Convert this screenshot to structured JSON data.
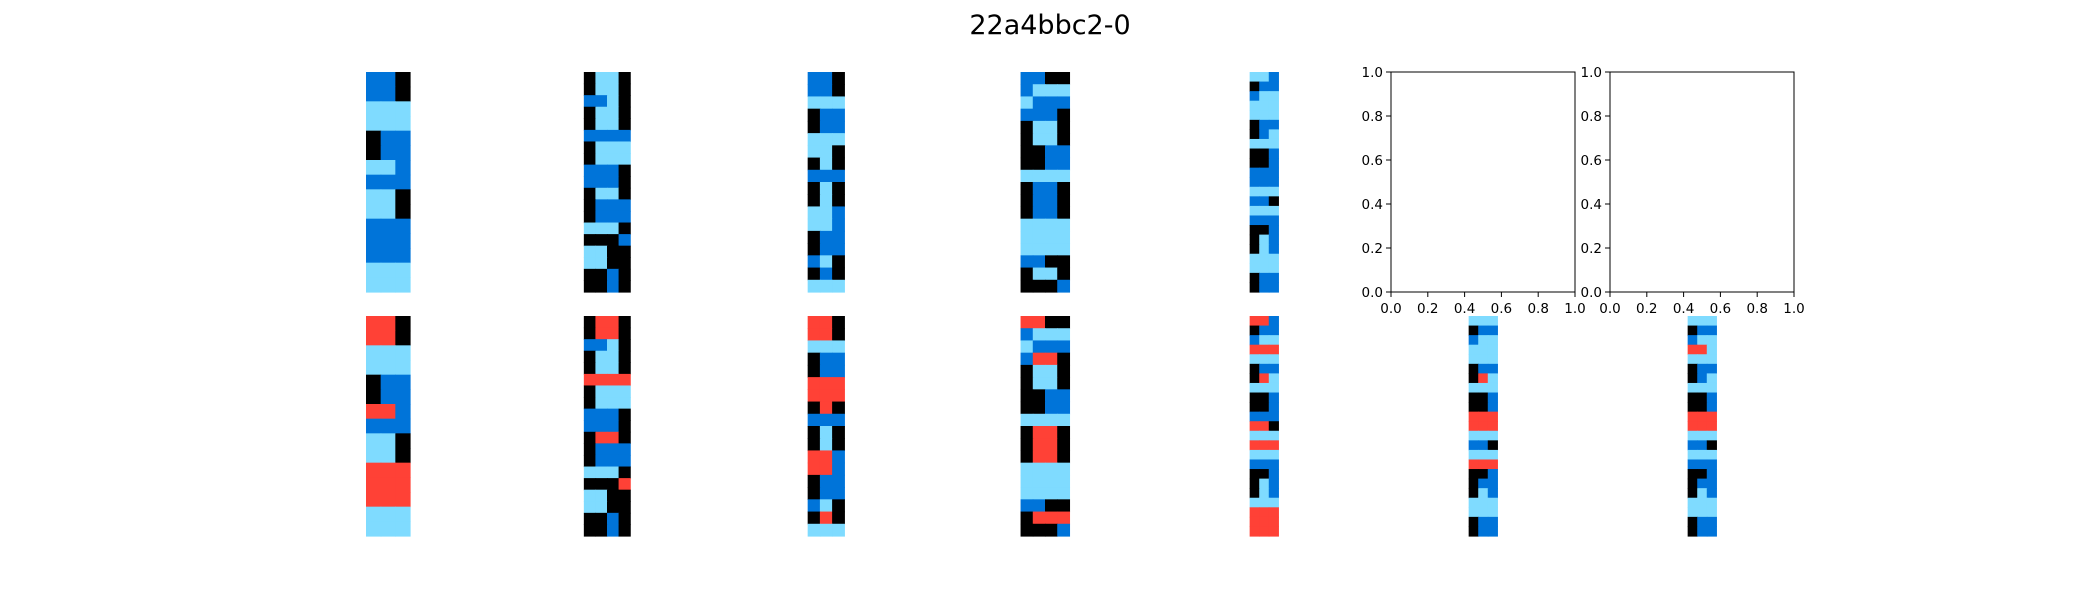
{
  "figure": {
    "title": "22a4bbc2-0"
  },
  "colors": {
    "0": "#000000",
    "1": "#0074D9",
    "2": "#FF4136",
    "8": "#7FDBFF"
  },
  "chart_data": {
    "type": "heatmap",
    "title": "22a4bbc2-0",
    "top_row": [
      {
        "grid": [
          [
            1,
            1,
            0
          ],
          [
            1,
            1,
            0
          ],
          [
            8,
            8,
            8
          ],
          [
            8,
            8,
            8
          ],
          [
            0,
            1,
            1
          ],
          [
            0,
            1,
            1
          ],
          [
            8,
            8,
            1
          ],
          [
            1,
            1,
            1
          ],
          [
            8,
            8,
            0
          ],
          [
            8,
            8,
            0
          ],
          [
            1,
            1,
            1
          ],
          [
            1,
            1,
            1
          ],
          [
            1,
            1,
            1
          ],
          [
            8,
            8,
            8
          ],
          [
            8,
            8,
            8
          ]
        ]
      },
      {
        "grid": [
          [
            0,
            8,
            8,
            0
          ],
          [
            0,
            8,
            8,
            0
          ],
          [
            1,
            1,
            8,
            0
          ],
          [
            0,
            8,
            8,
            0
          ],
          [
            0,
            8,
            8,
            0
          ],
          [
            1,
            1,
            1,
            1
          ],
          [
            0,
            8,
            8,
            8
          ],
          [
            0,
            8,
            8,
            8
          ],
          [
            1,
            1,
            1,
            0
          ],
          [
            1,
            1,
            1,
            0
          ],
          [
            0,
            8,
            8,
            0
          ],
          [
            0,
            1,
            1,
            1
          ],
          [
            0,
            1,
            1,
            1
          ],
          [
            8,
            8,
            8,
            0
          ],
          [
            0,
            0,
            0,
            1
          ],
          [
            8,
            8,
            0,
            0
          ],
          [
            8,
            8,
            0,
            0
          ],
          [
            0,
            0,
            1,
            0
          ],
          [
            0,
            0,
            1,
            0
          ]
        ]
      },
      {
        "grid": [
          [
            1,
            1,
            0
          ],
          [
            1,
            1,
            0
          ],
          [
            8,
            8,
            8
          ],
          [
            0,
            1,
            1
          ],
          [
            0,
            1,
            1
          ],
          [
            8,
            8,
            8
          ],
          [
            8,
            8,
            0
          ],
          [
            0,
            8,
            0
          ],
          [
            1,
            1,
            1
          ],
          [
            0,
            8,
            0
          ],
          [
            0,
            8,
            0
          ],
          [
            8,
            8,
            1
          ],
          [
            8,
            8,
            1
          ],
          [
            0,
            1,
            1
          ],
          [
            0,
            1,
            1
          ],
          [
            1,
            8,
            0
          ],
          [
            0,
            1,
            0
          ],
          [
            8,
            8,
            8
          ]
        ]
      },
      {
        "grid": [
          [
            1,
            1,
            0,
            0
          ],
          [
            1,
            8,
            8,
            8
          ],
          [
            8,
            1,
            1,
            1
          ],
          [
            1,
            1,
            1,
            0
          ],
          [
            0,
            8,
            8,
            0
          ],
          [
            0,
            8,
            8,
            0
          ],
          [
            0,
            0,
            1,
            1
          ],
          [
            0,
            0,
            1,
            1
          ],
          [
            8,
            8,
            8,
            8
          ],
          [
            0,
            1,
            1,
            0
          ],
          [
            0,
            1,
            1,
            0
          ],
          [
            0,
            1,
            1,
            0
          ],
          [
            8,
            8,
            8,
            8
          ],
          [
            8,
            8,
            8,
            8
          ],
          [
            8,
            8,
            8,
            8
          ],
          [
            1,
            1,
            0,
            0
          ],
          [
            0,
            8,
            8,
            0
          ],
          [
            0,
            0,
            0,
            1
          ]
        ]
      },
      {
        "grid": [
          [
            8,
            8,
            1
          ],
          [
            0,
            1,
            1
          ],
          [
            1,
            8,
            8
          ],
          [
            8,
            8,
            8
          ],
          [
            8,
            8,
            8
          ],
          [
            0,
            1,
            1
          ],
          [
            0,
            1,
            8
          ],
          [
            8,
            8,
            8
          ],
          [
            0,
            0,
            1
          ],
          [
            0,
            0,
            1
          ],
          [
            1,
            1,
            1
          ],
          [
            1,
            1,
            1
          ],
          [
            8,
            8,
            8
          ],
          [
            1,
            1,
            0
          ],
          [
            8,
            8,
            8
          ],
          [
            1,
            1,
            1
          ],
          [
            0,
            0,
            1
          ],
          [
            0,
            8,
            1
          ],
          [
            0,
            8,
            1
          ],
          [
            8,
            8,
            8
          ],
          [
            8,
            8,
            8
          ],
          [
            0,
            1,
            1
          ],
          [
            0,
            1,
            1
          ]
        ]
      },
      {
        "empty": true,
        "xlim": [
          0,
          1
        ],
        "ylim": [
          0,
          1
        ],
        "xticks": [
          "0.0",
          "0.2",
          "0.4",
          "0.6",
          "0.8",
          "1.0"
        ],
        "yticks": [
          "0.0",
          "0.2",
          "0.4",
          "0.6",
          "0.8",
          "1.0"
        ]
      },
      {
        "empty": true,
        "xlim": [
          0,
          1
        ],
        "ylim": [
          0,
          1
        ],
        "xticks": [
          "0.0",
          "0.2",
          "0.4",
          "0.6",
          "0.8",
          "1.0"
        ],
        "yticks": [
          "0.0",
          "0.2",
          "0.4",
          "0.6",
          "0.8",
          "1.0"
        ]
      }
    ],
    "bottom_row": [
      {
        "grid": [
          [
            2,
            2,
            0
          ],
          [
            2,
            2,
            0
          ],
          [
            8,
            8,
            8
          ],
          [
            8,
            8,
            8
          ],
          [
            0,
            1,
            1
          ],
          [
            0,
            1,
            1
          ],
          [
            2,
            2,
            1
          ],
          [
            1,
            1,
            1
          ],
          [
            8,
            8,
            0
          ],
          [
            8,
            8,
            0
          ],
          [
            2,
            2,
            2
          ],
          [
            2,
            2,
            2
          ],
          [
            2,
            2,
            2
          ],
          [
            8,
            8,
            8
          ],
          [
            8,
            8,
            8
          ]
        ]
      },
      {
        "grid": [
          [
            0,
            2,
            2,
            0
          ],
          [
            0,
            2,
            2,
            0
          ],
          [
            1,
            1,
            8,
            0
          ],
          [
            0,
            8,
            8,
            0
          ],
          [
            0,
            8,
            8,
            0
          ],
          [
            2,
            2,
            2,
            2
          ],
          [
            0,
            8,
            8,
            8
          ],
          [
            0,
            8,
            8,
            8
          ],
          [
            1,
            1,
            1,
            0
          ],
          [
            1,
            1,
            1,
            0
          ],
          [
            0,
            2,
            2,
            0
          ],
          [
            0,
            1,
            1,
            1
          ],
          [
            0,
            1,
            1,
            1
          ],
          [
            8,
            8,
            8,
            0
          ],
          [
            0,
            0,
            0,
            2
          ],
          [
            8,
            8,
            0,
            0
          ],
          [
            8,
            8,
            0,
            0
          ],
          [
            0,
            0,
            1,
            0
          ],
          [
            0,
            0,
            1,
            0
          ]
        ]
      },
      {
        "grid": [
          [
            2,
            2,
            0
          ],
          [
            2,
            2,
            0
          ],
          [
            8,
            8,
            8
          ],
          [
            0,
            1,
            1
          ],
          [
            0,
            1,
            1
          ],
          [
            2,
            2,
            2
          ],
          [
            2,
            2,
            2
          ],
          [
            0,
            2,
            0
          ],
          [
            1,
            1,
            1
          ],
          [
            0,
            8,
            0
          ],
          [
            0,
            8,
            0
          ],
          [
            2,
            2,
            1
          ],
          [
            2,
            2,
            1
          ],
          [
            0,
            1,
            1
          ],
          [
            0,
            1,
            1
          ],
          [
            1,
            8,
            0
          ],
          [
            0,
            2,
            0
          ],
          [
            8,
            8,
            8
          ]
        ]
      },
      {
        "grid": [
          [
            2,
            2,
            0,
            0
          ],
          [
            1,
            8,
            8,
            8
          ],
          [
            8,
            1,
            1,
            1
          ],
          [
            1,
            2,
            2,
            0
          ],
          [
            0,
            8,
            8,
            0
          ],
          [
            0,
            8,
            8,
            0
          ],
          [
            0,
            0,
            1,
            1
          ],
          [
            0,
            0,
            1,
            1
          ],
          [
            8,
            8,
            8,
            8
          ],
          [
            0,
            2,
            2,
            0
          ],
          [
            0,
            2,
            2,
            0
          ],
          [
            0,
            2,
            2,
            0
          ],
          [
            8,
            8,
            8,
            8
          ],
          [
            8,
            8,
            8,
            8
          ],
          [
            8,
            8,
            8,
            8
          ],
          [
            1,
            1,
            0,
            0
          ],
          [
            0,
            2,
            2,
            2
          ],
          [
            0,
            0,
            0,
            1
          ]
        ]
      },
      {
        "grid": [
          [
            2,
            2,
            1
          ],
          [
            0,
            1,
            1
          ],
          [
            1,
            8,
            8
          ],
          [
            2,
            2,
            2
          ],
          [
            8,
            8,
            8
          ],
          [
            0,
            1,
            1
          ],
          [
            0,
            2,
            8
          ],
          [
            8,
            8,
            8
          ],
          [
            0,
            0,
            1
          ],
          [
            0,
            0,
            1
          ],
          [
            1,
            1,
            1
          ],
          [
            2,
            2,
            0
          ],
          [
            8,
            8,
            8
          ],
          [
            2,
            2,
            2
          ],
          [
            8,
            8,
            8
          ],
          [
            1,
            1,
            1
          ],
          [
            0,
            0,
            1
          ],
          [
            0,
            8,
            1
          ],
          [
            0,
            8,
            1
          ],
          [
            8,
            8,
            8
          ],
          [
            2,
            2,
            2
          ],
          [
            2,
            2,
            2
          ],
          [
            2,
            2,
            2
          ]
        ]
      },
      {
        "grid": [
          [
            8,
            8,
            8
          ],
          [
            0,
            1,
            1
          ],
          [
            1,
            8,
            8
          ],
          [
            8,
            8,
            8
          ],
          [
            8,
            8,
            8
          ],
          [
            0,
            1,
            1
          ],
          [
            0,
            2,
            8
          ],
          [
            8,
            8,
            8
          ],
          [
            0,
            0,
            1
          ],
          [
            0,
            0,
            1
          ],
          [
            2,
            2,
            2
          ],
          [
            2,
            2,
            2
          ],
          [
            8,
            8,
            8
          ],
          [
            1,
            1,
            0
          ],
          [
            8,
            8,
            8
          ],
          [
            2,
            2,
            2
          ],
          [
            0,
            0,
            1
          ],
          [
            0,
            1,
            1
          ],
          [
            0,
            8,
            1
          ],
          [
            8,
            8,
            8
          ],
          [
            8,
            8,
            8
          ],
          [
            0,
            1,
            1
          ],
          [
            0,
            1,
            1
          ]
        ]
      },
      {
        "grid": [
          [
            8,
            8,
            8
          ],
          [
            0,
            1,
            1
          ],
          [
            1,
            8,
            8
          ],
          [
            2,
            2,
            8
          ],
          [
            8,
            8,
            8
          ],
          [
            0,
            1,
            1
          ],
          [
            0,
            1,
            8
          ],
          [
            8,
            8,
            8
          ],
          [
            0,
            0,
            1
          ],
          [
            0,
            0,
            1
          ],
          [
            2,
            2,
            2
          ],
          [
            2,
            2,
            2
          ],
          [
            8,
            8,
            8
          ],
          [
            1,
            1,
            0
          ],
          [
            8,
            8,
            8
          ],
          [
            1,
            1,
            1
          ],
          [
            0,
            0,
            1
          ],
          [
            0,
            1,
            1
          ],
          [
            0,
            8,
            1
          ],
          [
            8,
            8,
            8
          ],
          [
            8,
            8,
            8
          ],
          [
            0,
            1,
            1
          ],
          [
            0,
            1,
            1
          ]
        ]
      }
    ]
  }
}
